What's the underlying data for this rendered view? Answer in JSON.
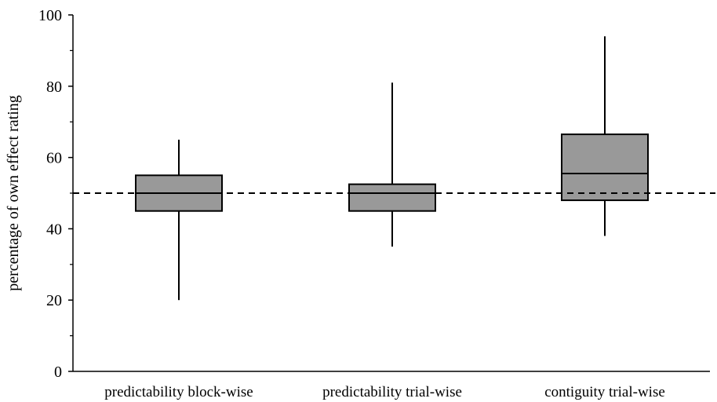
{
  "chart_data": {
    "type": "boxplot",
    "title": "",
    "xlabel": "",
    "ylabel": "percentage  of own effect  rating",
    "ylim": [
      0,
      100
    ],
    "y_ticks": [
      0,
      20,
      40,
      60,
      80,
      100
    ],
    "grid": false,
    "legend": "none",
    "box_fill": "#999999",
    "reference_line": {
      "y": 50,
      "style": "dashed"
    },
    "categories": [
      "predictability block-wise",
      "predictability trial-wise",
      "contiguity trial-wise"
    ],
    "boxes": [
      {
        "min": 20,
        "q1": 45,
        "median": 50,
        "q3": 55,
        "max": 65
      },
      {
        "min": 35,
        "q1": 45,
        "median": 50,
        "q3": 52.5,
        "max": 81
      },
      {
        "min": 38,
        "q1": 48,
        "median": 55.5,
        "q3": 66.5,
        "max": 94
      }
    ]
  }
}
